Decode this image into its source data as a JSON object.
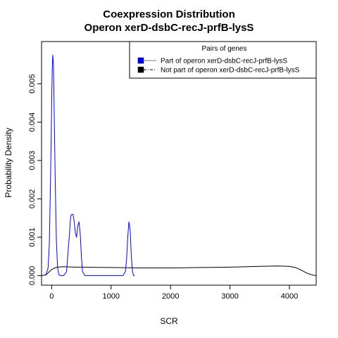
{
  "chart_data": {
    "type": "line",
    "title_lines": [
      "Coexpression Distribution",
      "Operon xerD-dsbC-recJ-prfB-lysS"
    ],
    "xlabel": "SCR",
    "ylabel": "Probability Density",
    "xlim": [
      -170,
      4450
    ],
    "ylim": [
      -0.00025,
      0.0061
    ],
    "x_ticks": [
      0,
      1000,
      2000,
      3000,
      4000
    ],
    "x_tick_labels": [
      "0",
      "1000",
      "2000",
      "3000",
      "4000"
    ],
    "y_ticks": [
      0.0,
      0.001,
      0.002,
      0.003,
      0.004,
      0.005
    ],
    "y_tick_labels": [
      "0.000",
      "0.001",
      "0.002",
      "0.003",
      "0.004",
      "0.005"
    ],
    "legend": {
      "title": "Pairs of genes",
      "position": "top-right",
      "entries": [
        {
          "label": "Part of operon xerD-dsbC-recJ-prfB-lysS",
          "color": "#0000ff"
        },
        {
          "label": "Not part of operon xerD-dsbC-recJ-prfB-lysS",
          "color": "#000000"
        }
      ]
    },
    "series": [
      {
        "name": "Part of operon xerD-dsbC-recJ-prfB-lysS",
        "color": "#0000ff",
        "x": [
          -100,
          -60,
          -40,
          -20,
          0,
          10,
          20,
          30,
          40,
          60,
          80,
          100,
          120,
          150,
          200,
          250,
          300,
          320,
          340,
          360,
          380,
          400,
          420,
          440,
          460,
          480,
          500,
          520,
          560,
          600,
          700,
          800,
          900,
          1000,
          1100,
          1200,
          1240,
          1260,
          1280,
          1300,
          1320,
          1340,
          1360,
          1380,
          1400
        ],
        "y": [
          0.0,
          0.0002,
          0.0008,
          0.0024,
          0.0045,
          0.0054,
          0.00575,
          0.0055,
          0.0046,
          0.0025,
          0.0009,
          0.0002,
          3e-05,
          0.0,
          0.0,
          0.0001,
          0.0011,
          0.00155,
          0.0016,
          0.0016,
          0.0014,
          0.0011,
          0.001,
          0.0013,
          0.0014,
          0.0011,
          0.0005,
          0.0001,
          0.0,
          0.0,
          0.0,
          0.0,
          0.0,
          0.0,
          0.0,
          0.0,
          0.0001,
          0.0004,
          0.001,
          0.0014,
          0.0012,
          0.0005,
          0.0001,
          0.0,
          0.0
        ]
      },
      {
        "name": "Not part of operon xerD-dsbC-recJ-prfB-lysS",
        "color": "#000000",
        "x": [
          -170,
          -120,
          -80,
          -40,
          0,
          50,
          100,
          200,
          400,
          600,
          800,
          1000,
          1500,
          2000,
          2500,
          3000,
          3500,
          3800,
          4000,
          4100,
          4200,
          4300,
          4400,
          4450
        ],
        "y": [
          0.0,
          1e-05,
          4e-05,
          0.0001,
          0.00016,
          0.0002,
          0.00022,
          0.00023,
          0.00022,
          0.00022,
          0.000215,
          0.00021,
          0.0002,
          0.0002,
          0.00021,
          0.00022,
          0.00024,
          0.00025,
          0.00024,
          0.00021,
          0.00014,
          6e-05,
          1e-05,
          0.0
        ]
      }
    ]
  }
}
